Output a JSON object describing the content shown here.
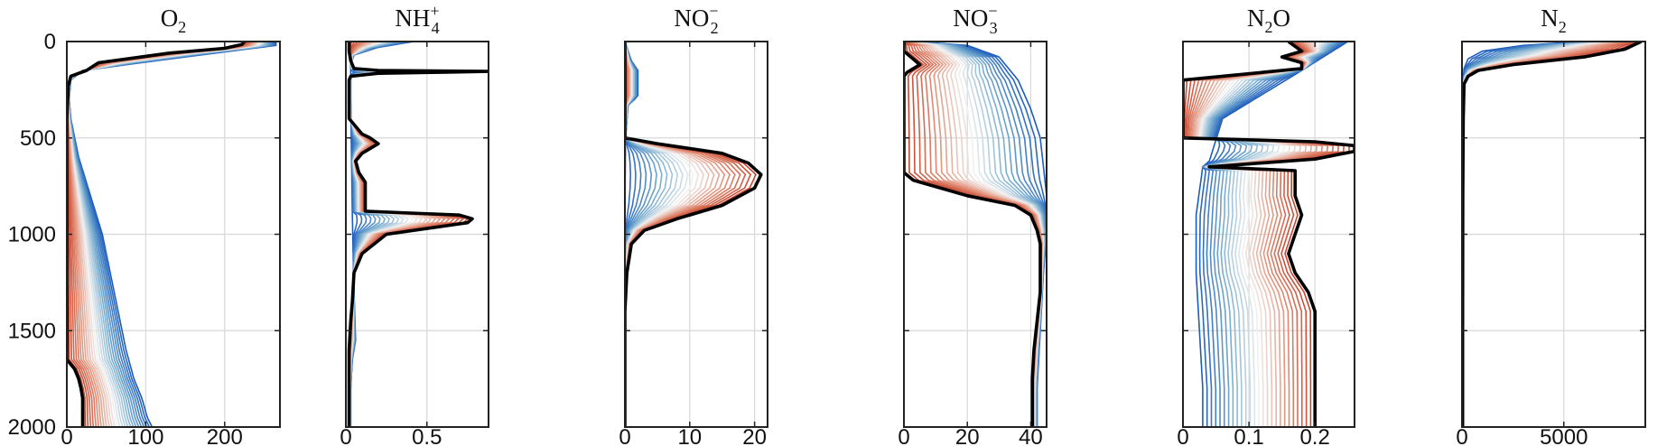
{
  "figure": {
    "y_axis": {
      "range": [
        0,
        2000
      ],
      "ticks": [
        0,
        500,
        1000,
        1500,
        2000
      ],
      "reversed": true
    },
    "grid": true
  },
  "chart_data": [
    {
      "type": "line",
      "title": {
        "base": "O",
        "sub": "2",
        "sup": ""
      },
      "xlim": [
        0,
        270
      ],
      "xticks": [
        0,
        100,
        200
      ],
      "final_profile": {
        "x": [
          225,
          222,
          200,
          130,
          40,
          25,
          5,
          2,
          0,
          0,
          0,
          0,
          0,
          0,
          0,
          0,
          0,
          0,
          0,
          0,
          0,
          0,
          10,
          15,
          18,
          20,
          20,
          20,
          20
        ],
        "y": [
          0,
          15,
          35,
          60,
          110,
          150,
          180,
          230,
          400,
          600,
          800,
          950,
          1000,
          1100,
          1200,
          1300,
          1400,
          1450,
          1500,
          1550,
          1600,
          1650,
          1700,
          1750,
          1800,
          1850,
          1900,
          1950,
          2000
        ]
      },
      "initial_profile": {
        "x": [
          265,
          265,
          150,
          20,
          5,
          3,
          5,
          15,
          30,
          45,
          55,
          65,
          75,
          85,
          95,
          102,
          108
        ],
        "y": [
          0,
          20,
          80,
          150,
          200,
          300,
          400,
          600,
          800,
          1000,
          1200,
          1400,
          1600,
          1750,
          1850,
          1950,
          2000
        ]
      }
    },
    {
      "type": "line",
      "title": {
        "base": "NH",
        "sub": "4",
        "sup": "+"
      },
      "xlim": [
        0,
        0.88
      ],
      "xticks": [
        0,
        0.5
      ],
      "final_profile": {
        "x": [
          0.02,
          0.02,
          0.03,
          0.05,
          0.2,
          0.88,
          0.2,
          0.03,
          0.02,
          0.02,
          0.1,
          0.15,
          0.2,
          0.1,
          0.06,
          0.08,
          0.12,
          0.12,
          0.4,
          0.7,
          0.78,
          0.75,
          0.25,
          0.1,
          0.05,
          0.04,
          0.03,
          0.02,
          0.02,
          0.02,
          0.02
        ],
        "y": [
          0,
          50,
          100,
          140,
          150,
          155,
          165,
          180,
          200,
          400,
          480,
          500,
          530,
          580,
          620,
          680,
          730,
          880,
          890,
          900,
          920,
          940,
          1000,
          1100,
          1200,
          1350,
          1450,
          1600,
          1800,
          1950,
          2000
        ]
      },
      "initial_profile": {
        "x": [
          0.42,
          0.2,
          0.05,
          0.03,
          0.03,
          0.04,
          0.05,
          0.06,
          0.04,
          0.03,
          0.03
        ],
        "y": [
          0,
          30,
          70,
          120,
          300,
          900,
          1300,
          1550,
          1650,
          1800,
          2000
        ]
      }
    },
    {
      "type": "line",
      "title": {
        "base": "NO",
        "sub": "2",
        "sup": "−"
      },
      "xlim": [
        0,
        22
      ],
      "xticks": [
        0,
        10,
        20
      ],
      "final_profile": {
        "x": [
          0,
          0,
          0,
          0,
          0,
          5,
          15,
          19,
          21,
          20,
          15,
          8,
          3,
          1,
          0.3,
          0,
          0,
          0
        ],
        "y": [
          0,
          100,
          300,
          450,
          500,
          530,
          580,
          630,
          690,
          760,
          850,
          920,
          980,
          1050,
          1200,
          1400,
          1700,
          2000
        ]
      },
      "initial_profile": {
        "x": [
          0,
          1,
          2,
          2,
          2,
          1.5,
          0.5,
          0.1,
          0,
          0
        ],
        "y": [
          0,
          100,
          150,
          200,
          280,
          300,
          330,
          500,
          900,
          2000
        ]
      }
    },
    {
      "type": "line",
      "title": {
        "base": "NO",
        "sub": "3",
        "sup": "−"
      },
      "xlim": [
        0,
        45
      ],
      "xticks": [
        0,
        20,
        40
      ],
      "final_profile": {
        "x": [
          0,
          0,
          5,
          1,
          0,
          0,
          0,
          0,
          0,
          3,
          20,
          35,
          40,
          42,
          43,
          43,
          43,
          42,
          41,
          40.5,
          40.5,
          40.5
        ],
        "y": [
          0,
          50,
          120,
          160,
          180,
          300,
          500,
          600,
          680,
          720,
          800,
          850,
          900,
          980,
          1050,
          1150,
          1300,
          1450,
          1600,
          1750,
          1900,
          2000
        ]
      },
      "initial_profile": {
        "x": [
          2,
          20,
          30,
          36,
          40,
          43,
          44,
          45,
          45,
          44,
          43,
          42,
          42
        ],
        "y": [
          0,
          20,
          80,
          200,
          350,
          500,
          650,
          800,
          1000,
          1200,
          1500,
          1800,
          2000
        ]
      }
    },
    {
      "type": "line",
      "title": {
        "base": "N",
        "sub": "2",
        "sup": "",
        "suffix": "O"
      },
      "xlim": [
        0,
        0.26
      ],
      "xticks": [
        0,
        0.1,
        0.2
      ],
      "final_profile": {
        "x": [
          0.16,
          0.18,
          0.15,
          0.18,
          0.18,
          0.0,
          0.0,
          0.0,
          0.0,
          0.0,
          0.2,
          0.26,
          0.26,
          0.2,
          0.04,
          0.17,
          0.17,
          0.17,
          0.18,
          0.17,
          0.16,
          0.17,
          0.19,
          0.2,
          0.2,
          0.2,
          0.2
        ],
        "y": [
          0,
          50,
          80,
          110,
          140,
          200,
          300,
          400,
          480,
          500,
          520,
          540,
          570,
          610,
          650,
          670,
          700,
          800,
          900,
          1000,
          1100,
          1200,
          1300,
          1400,
          1600,
          1800,
          2000
        ]
      },
      "initial_profile": {
        "x": [
          0.25,
          0.18,
          0.06,
          0.04,
          0.03,
          0.02,
          0.02,
          0.025,
          0.03,
          0.03
        ],
        "y": [
          0,
          150,
          400,
          620,
          650,
          900,
          1200,
          1500,
          1800,
          2000
        ]
      }
    },
    {
      "type": "line",
      "title": {
        "base": "N",
        "sub": "2",
        "sup": ""
      },
      "xlim": [
        0,
        9000
      ],
      "xticks": [
        0,
        5000
      ],
      "final_profile": {
        "x": [
          8800,
          8000,
          6000,
          2500,
          800,
          300,
          100,
          60,
          40,
          30,
          30
        ],
        "y": [
          0,
          40,
          80,
          120,
          150,
          180,
          220,
          400,
          800,
          1500,
          2000
        ]
      },
      "initial_profile": {
        "x": [
          6000,
          3000,
          1000,
          300,
          100,
          50,
          30,
          30
        ],
        "y": [
          0,
          20,
          50,
          90,
          140,
          200,
          400,
          2000
        ]
      }
    }
  ]
}
